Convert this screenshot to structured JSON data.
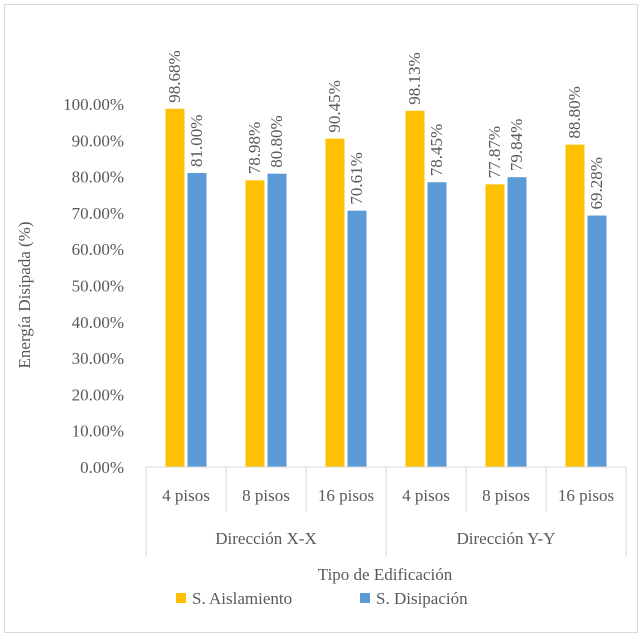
{
  "chart_data": {
    "type": "bar",
    "groups": [
      {
        "label": "Dirección X-X",
        "categories": [
          "4 pisos",
          "8 pisos",
          "16 pisos"
        ]
      },
      {
        "label": "Dirección Y-Y",
        "categories": [
          "4 pisos",
          "8 pisos",
          "16 pisos"
        ]
      }
    ],
    "series": [
      {
        "name": "S. Aislamiento",
        "color": "#FFC000",
        "values": [
          98.68,
          78.98,
          90.45,
          98.13,
          77.87,
          88.8
        ],
        "labels": [
          "98.68%",
          "78.98%",
          "90.45%",
          "98.13%",
          "77.87%",
          "88.80%"
        ]
      },
      {
        "name": "S. Disipación",
        "color": "#5B9BD5",
        "values": [
          81.0,
          80.8,
          70.61,
          78.45,
          79.84,
          69.28
        ],
        "labels": [
          "81.00%",
          "80.80%",
          "70.61%",
          "78.45%",
          "79.84%",
          "69.28%"
        ]
      }
    ],
    "ylabel": "Energía Disipada (%)",
    "xlabel": "Tipo de Edificación",
    "ylim": [
      0,
      100
    ],
    "yticks": [
      0,
      10,
      20,
      30,
      40,
      50,
      60,
      70,
      80,
      90,
      100
    ],
    "ytick_labels": [
      "0.00%",
      "10.00%",
      "20.00%",
      "30.00%",
      "40.00%",
      "50.00%",
      "60.00%",
      "70.00%",
      "80.00%",
      "90.00%",
      "100.00%"
    ],
    "grid": false,
    "legend_position": "bottom"
  }
}
